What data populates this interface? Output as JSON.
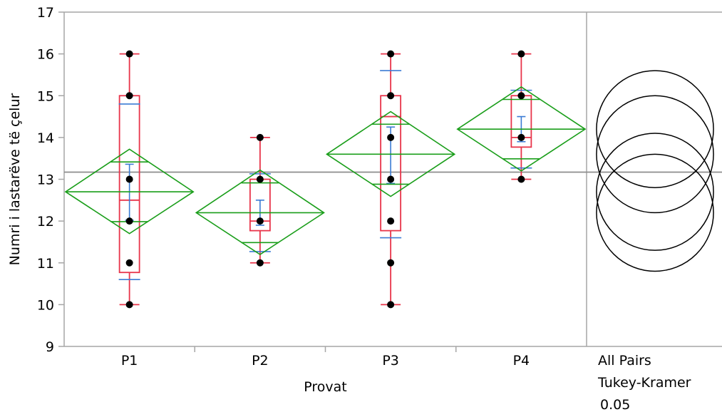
{
  "chart_data": {
    "type": "box",
    "title": "",
    "xlabel": "Provat",
    "ylabel": "Numri i lastarëve të çelur",
    "ylim": [
      9,
      17
    ],
    "yticks": [
      9,
      10,
      11,
      12,
      13,
      14,
      15,
      16,
      17
    ],
    "grand_mean": 13.17,
    "categories": [
      "P1",
      "P2",
      "P3",
      "P4"
    ],
    "groups": [
      {
        "name": "P1",
        "points": [
          16,
          15,
          13,
          12,
          11,
          10
        ],
        "box": {
          "min": 10,
          "q1": 10.77,
          "median": 12.5,
          "q3": 15,
          "max": 16
        },
        "mean": 12.7,
        "ci_low": 11.7,
        "ci_high": 13.72,
        "mean_sd_low": 10.6,
        "mean_sd_high": 14.8,
        "se_low": 12.02,
        "se_high": 13.36
      },
      {
        "name": "P2",
        "points": [
          14,
          13,
          12,
          11
        ],
        "box": {
          "min": 11,
          "q1": 11.77,
          "median": 12,
          "q3": 13,
          "max": 14
        },
        "mean": 12.2,
        "ci_low": 11.2,
        "ci_high": 13.22,
        "mean_sd_low": 11.27,
        "mean_sd_high": 13.13,
        "se_low": 11.9,
        "se_high": 12.5
      },
      {
        "name": "P3",
        "points": [
          16,
          15,
          14,
          13,
          12,
          11,
          10
        ],
        "box": {
          "min": 10,
          "q1": 11.77,
          "median": 14.5,
          "q3": 15,
          "max": 16
        },
        "mean": 13.6,
        "ci_low": 12.59,
        "ci_high": 14.62,
        "mean_sd_low": 11.6,
        "mean_sd_high": 15.6,
        "se_low": 12.9,
        "se_high": 14.25
      },
      {
        "name": "P4",
        "points": [
          16,
          15,
          14,
          13
        ],
        "box": {
          "min": 13,
          "q1": 13.77,
          "median": 14,
          "q3": 15,
          "max": 16
        },
        "mean": 14.2,
        "ci_low": 13.2,
        "ci_high": 15.21,
        "mean_sd_low": 13.27,
        "mean_sd_high": 15.13,
        "se_low": 13.9,
        "se_high": 14.5
      }
    ],
    "comparison_panel": {
      "label_lines": [
        "All Pairs",
        "Tukey-Kramer",
        "0.05"
      ],
      "circles": [
        {
          "group": "P4",
          "center": 14.2,
          "radius": 1.4
        },
        {
          "group": "P3",
          "center": 13.6,
          "radius": 1.4
        },
        {
          "group": "P1",
          "center": 12.7,
          "radius": 1.4
        },
        {
          "group": "P2",
          "center": 12.2,
          "radius": 1.4
        }
      ]
    },
    "colors": {
      "box": "#e8344a",
      "diamond": "#1a9e1a",
      "error_bar": "#3b7bd4",
      "point": "#000000",
      "frame": "#a6a6a6",
      "grand_mean": "#8c8c8c"
    }
  }
}
